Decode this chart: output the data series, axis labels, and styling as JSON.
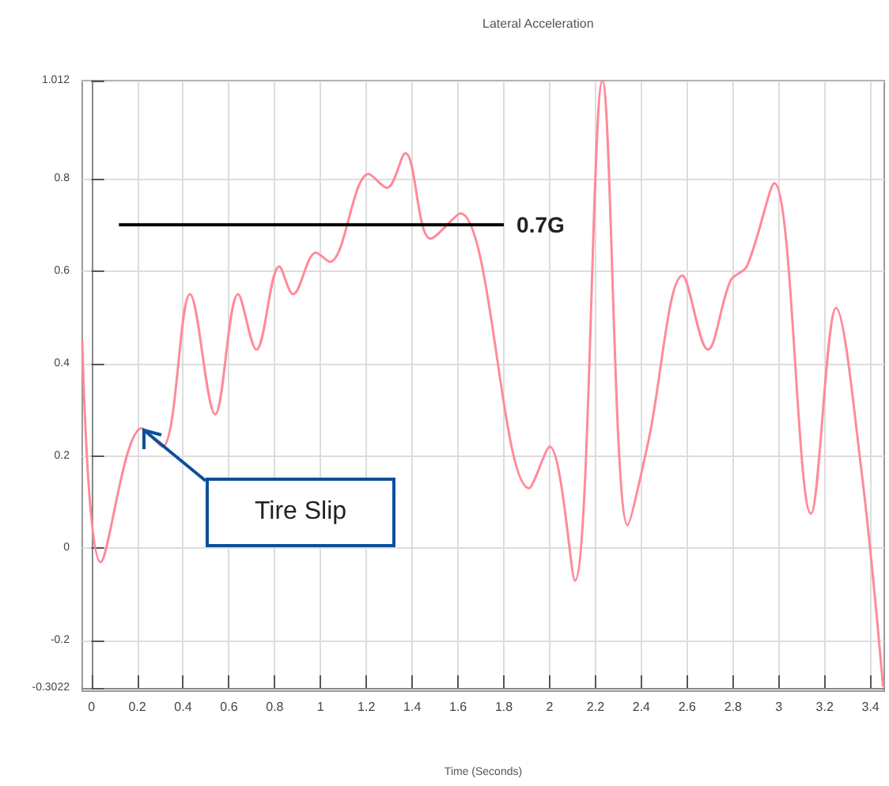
{
  "chart_data": {
    "type": "line",
    "title": "Lateral Acceleration",
    "xlabel": "Time (Seconds)",
    "xlim": [
      -0.04,
      3.46
    ],
    "ylim": [
      -0.3022,
      1.012
    ],
    "xticks": [
      0,
      0.2,
      0.4,
      0.6,
      0.8,
      1,
      1.2,
      1.4,
      1.6,
      1.8,
      2,
      2.2,
      2.4,
      2.6,
      2.8,
      3,
      3.2,
      3.4
    ],
    "yticks": [
      -0.3022,
      -0.2,
      0,
      0.2,
      0.4,
      0.6,
      0.8,
      1.012
    ],
    "grid": true,
    "legend": false,
    "marker": "none",
    "series": [
      {
        "color": "#ff8a9a",
        "x": [
          -0.04,
          0.04,
          0.22,
          0.31,
          0.43,
          0.54,
          0.64,
          0.72,
          0.82,
          0.88,
          0.98,
          1.04,
          1.21,
          1.29,
          1.37,
          1.48,
          1.61,
          1.91,
          2.0,
          2.11,
          2.23,
          2.34,
          2.43,
          2.58,
          2.69,
          2.79,
          2.86,
          2.98,
          3.14,
          3.25,
          3.36,
          3.455
        ],
        "values": [
          0.45,
          -0.03,
          0.26,
          0.22,
          0.55,
          0.29,
          0.55,
          0.43,
          0.61,
          0.55,
          0.64,
          0.62,
          0.81,
          0.78,
          0.855,
          0.67,
          0.725,
          0.13,
          0.22,
          -0.07,
          1.012,
          0.05,
          0.23,
          0.59,
          0.43,
          0.58,
          0.61,
          0.79,
          0.075,
          0.52,
          0.17,
          -0.3
        ]
      },
      {
        "name": "0.7G",
        "color": "#000000",
        "x": [
          0.12,
          1.8
        ],
        "values": [
          0.7,
          0.7
        ]
      }
    ],
    "annotations": [
      "Tire Slip"
    ]
  }
}
